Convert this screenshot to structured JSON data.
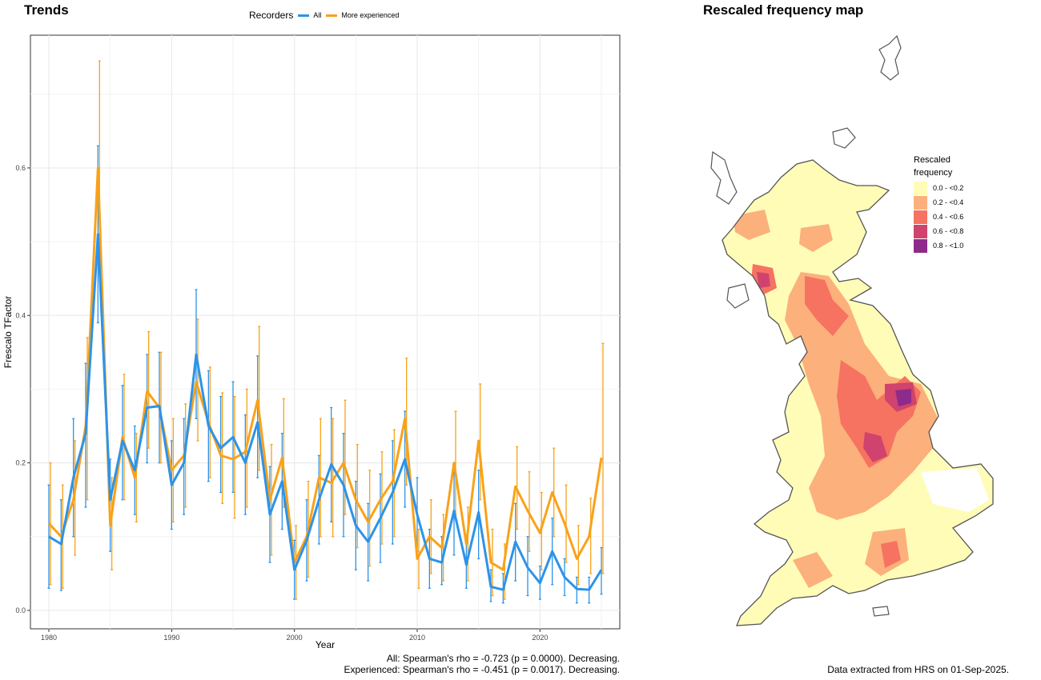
{
  "trends_title": "Trends",
  "map_title": "Rescaled frequency map",
  "legend": {
    "title": "Recorders",
    "all_label": "All",
    "exp_label": "More experienced",
    "all_color": "#2D93E8",
    "exp_color": "#F8A21A"
  },
  "stats": {
    "line1": "All: Spearman's rho = -0.723 (p = 0.0000). Decreasing.",
    "line2": "Experienced: Spearman's rho = -0.451 (p = 0.0017). Decreasing."
  },
  "extract_note": "Data extracted from HRS on 01-Sep-2025.",
  "map_legend": {
    "title_line1": "Rescaled",
    "title_line2": "frequency",
    "classes": [
      {
        "label": "0.0 - <0.2",
        "color": "#FFFCB8"
      },
      {
        "label": "0.2 - <0.4",
        "color": "#FCB07C"
      },
      {
        "label": "0.4 - <0.6",
        "color": "#F57360"
      },
      {
        "label": "0.6 - <0.8",
        "color": "#D0436E"
      },
      {
        "label": "0.8 - <1.0",
        "color": "#8E2B8A"
      }
    ]
  },
  "chart_data": {
    "type": "line",
    "title": "Trends",
    "xlabel": "Year",
    "ylabel": "Frescalo TFactor",
    "xlim": [
      1978.5,
      2026.5
    ],
    "ylim": [
      -0.025,
      0.78
    ],
    "xticks": [
      1980,
      1990,
      2000,
      2010,
      2020
    ],
    "yticks": [
      0.0,
      0.2,
      0.4,
      0.6
    ],
    "ytick_labels": [
      "0.0",
      "0.2",
      "0.4",
      "0.6"
    ],
    "grid": true,
    "legend_position": "top",
    "x": [
      1980,
      1981,
      1982,
      1983,
      1984,
      1985,
      1986,
      1987,
      1988,
      1989,
      1990,
      1991,
      1992,
      1993,
      1994,
      1995,
      1996,
      1997,
      1998,
      1999,
      2000,
      2001,
      2002,
      2003,
      2004,
      2005,
      2006,
      2007,
      2008,
      2009,
      2010,
      2011,
      2012,
      2013,
      2014,
      2015,
      2016,
      2017,
      2018,
      2019,
      2020,
      2021,
      2022,
      2023,
      2024,
      2025
    ],
    "series": [
      {
        "name": "All",
        "color": "#2D93E8",
        "values": [
          0.1,
          0.09,
          0.18,
          0.24,
          0.51,
          0.15,
          0.23,
          0.19,
          0.275,
          0.277,
          0.17,
          0.2,
          0.347,
          0.25,
          0.22,
          0.235,
          0.2,
          0.255,
          0.13,
          0.175,
          0.055,
          0.095,
          0.15,
          0.198,
          0.17,
          0.115,
          0.093,
          0.125,
          0.16,
          0.205,
          0.13,
          0.07,
          0.065,
          0.135,
          0.062,
          0.133,
          0.032,
          0.028,
          0.093,
          0.058,
          0.037,
          0.08,
          0.045,
          0.029,
          0.028,
          0.055
        ],
        "lower": [
          0.03,
          0.027,
          0.1,
          0.14,
          0.39,
          0.08,
          0.15,
          0.13,
          0.2,
          0.2,
          0.11,
          0.13,
          0.26,
          0.175,
          0.16,
          0.16,
          0.13,
          0.18,
          0.065,
          0.11,
          0.015,
          0.04,
          0.09,
          0.12,
          0.1,
          0.055,
          0.04,
          0.065,
          0.09,
          0.14,
          0.08,
          0.03,
          0.035,
          0.075,
          0.03,
          0.07,
          0.012,
          0.01,
          0.04,
          0.02,
          0.015,
          0.035,
          0.02,
          0.01,
          0.01,
          0.022
        ],
        "upper": [
          0.17,
          0.15,
          0.26,
          0.335,
          0.63,
          0.205,
          0.305,
          0.25,
          0.347,
          0.35,
          0.23,
          0.26,
          0.435,
          0.325,
          0.29,
          0.31,
          0.265,
          0.345,
          0.195,
          0.24,
          0.095,
          0.15,
          0.21,
          0.275,
          0.24,
          0.175,
          0.145,
          0.185,
          0.23,
          0.27,
          0.18,
          0.11,
          0.1,
          0.19,
          0.095,
          0.19,
          0.055,
          0.05,
          0.145,
          0.1,
          0.06,
          0.125,
          0.07,
          0.045,
          0.045,
          0.085
        ]
      },
      {
        "name": "More experienced",
        "color": "#F8A21A",
        "values": [
          0.118,
          0.1,
          0.15,
          0.25,
          0.6,
          0.115,
          0.235,
          0.18,
          0.297,
          0.275,
          0.19,
          0.21,
          0.31,
          0.255,
          0.21,
          0.205,
          0.215,
          0.285,
          0.15,
          0.207,
          0.065,
          0.1,
          0.18,
          0.173,
          0.2,
          0.15,
          0.12,
          0.15,
          0.175,
          0.26,
          0.07,
          0.1,
          0.085,
          0.2,
          0.09,
          0.23,
          0.065,
          0.055,
          0.168,
          0.135,
          0.105,
          0.16,
          0.118,
          0.07,
          0.1,
          0.207
        ],
        "lower": [
          0.035,
          0.03,
          0.075,
          0.15,
          0.46,
          0.055,
          0.15,
          0.12,
          0.22,
          0.2,
          0.12,
          0.14,
          0.23,
          0.18,
          0.145,
          0.125,
          0.14,
          0.19,
          0.075,
          0.14,
          0.015,
          0.045,
          0.1,
          0.1,
          0.13,
          0.085,
          0.06,
          0.09,
          0.1,
          0.17,
          0.03,
          0.05,
          0.04,
          0.13,
          0.04,
          0.15,
          0.02,
          0.015,
          0.11,
          0.08,
          0.055,
          0.1,
          0.065,
          0.035,
          0.05,
          0.05
        ],
        "upper": [
          0.2,
          0.17,
          0.23,
          0.37,
          0.745,
          0.18,
          0.32,
          0.24,
          0.378,
          0.35,
          0.26,
          0.28,
          0.395,
          0.33,
          0.295,
          0.29,
          0.3,
          0.385,
          0.225,
          0.287,
          0.115,
          0.175,
          0.26,
          0.26,
          0.285,
          0.225,
          0.19,
          0.215,
          0.245,
          0.342,
          0.11,
          0.15,
          0.13,
          0.27,
          0.14,
          0.307,
          0.11,
          0.09,
          0.222,
          0.188,
          0.16,
          0.22,
          0.17,
          0.115,
          0.152,
          0.362
        ]
      }
    ]
  }
}
